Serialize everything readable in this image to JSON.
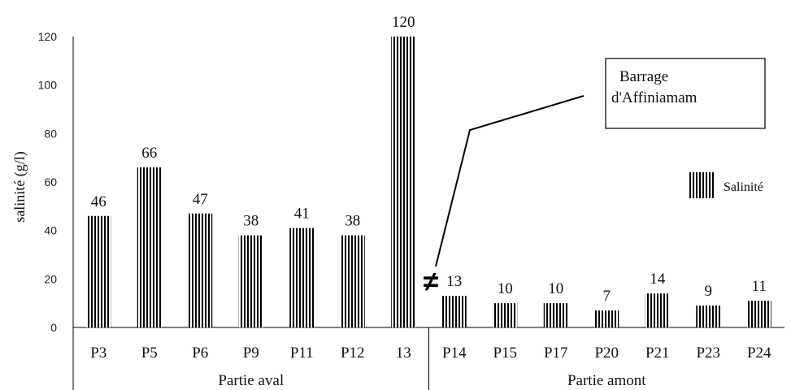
{
  "chart_data": {
    "type": "bar",
    "categories": [
      "P3",
      "P5",
      "P6",
      "P9",
      "P11",
      "P12",
      "13",
      "P14",
      "P15",
      "P17",
      "P20",
      "P21",
      "P23",
      "P24"
    ],
    "values": [
      46,
      66,
      47,
      38,
      41,
      38,
      120,
      13,
      10,
      10,
      7,
      14,
      9,
      11
    ],
    "value_labels": [
      "46",
      "66",
      "47",
      "38",
      "41",
      "38",
      "120",
      "13",
      "10",
      "10",
      "7",
      "14",
      "9",
      "11"
    ],
    "series": [
      {
        "name": "Salinité",
        "values": [
          46,
          66,
          47,
          38,
          41,
          38,
          120,
          13,
          10,
          10,
          7,
          14,
          9,
          11
        ]
      }
    ],
    "ylabel": "salinité (g/l)",
    "ylim": [
      0,
      120
    ],
    "yticks": [
      "0",
      "20",
      "40",
      "60",
      "80",
      "100",
      "120"
    ],
    "groups": [
      {
        "label": "Partie aval",
        "categories": [
          "P3",
          "P5",
          "P6",
          "P9",
          "P11",
          "P12",
          "13"
        ]
      },
      {
        "label": "Partie amont",
        "categories": [
          "P14",
          "P15",
          "P17",
          "P20",
          "P21",
          "P23",
          "P24"
        ]
      }
    ],
    "annotation": {
      "text_lines": [
        "Barrage",
        "d'Affiniamam"
      ],
      "symbol": "≠"
    },
    "legend": {
      "label": "Salinité",
      "placement": "right"
    },
    "bar_pattern": "vertical-stripes",
    "grid": false,
    "colors": {
      "bars": "#000000",
      "axis": "#000000",
      "text": "#111111"
    }
  }
}
